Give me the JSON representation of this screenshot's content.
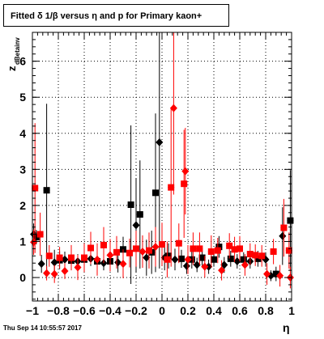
{
  "title": "Fitted δ 1/β versus η and p for Primary kaon+",
  "ylabel_main": "z",
  "ylabel_sub": "dBetainv",
  "xlabel": "η",
  "timestamp": "Thu Sep 14 10:55:57 2017",
  "colors": {
    "series_black": "#000000",
    "series_red": "#ff0000",
    "grid": "#000000",
    "frame": "#000000",
    "background": "#ffffff"
  },
  "chart_data": {
    "type": "scatter",
    "title": "Fitted δ 1/β versus η and p for Primary kaon+",
    "xlabel": "η",
    "ylabel": "z dBetainv",
    "xlim": [
      -1,
      1
    ],
    "ylim": [
      -0.65,
      6.8
    ],
    "xticks": [
      -1,
      -0.8,
      -0.6,
      -0.4,
      -0.2,
      0,
      0.2,
      0.4,
      0.6,
      0.8,
      1
    ],
    "xtick_labels": [
      "−1",
      "−0.8",
      "−0.6",
      "−0.4",
      "−0.2",
      "0",
      "0.2",
      "0.4",
      "0.6",
      "0.8",
      "1"
    ],
    "yticks": [
      0,
      1,
      2,
      3,
      4,
      5,
      6
    ],
    "ytick_labels": [
      "0",
      "1",
      "2",
      "3",
      "4",
      "5",
      "6"
    ],
    "grid": true,
    "series": [
      {
        "color": "#000000",
        "points": [
          {
            "x": -0.99,
            "y": 1.2,
            "err": 0.3,
            "marker": "diamond"
          },
          {
            "x": -0.97,
            "y": 1.12,
            "err": 0.2,
            "marker": "square"
          },
          {
            "x": -0.93,
            "y": 0.38,
            "err": 0.25,
            "marker": "diamond"
          },
          {
            "x": -0.89,
            "y": 2.42,
            "err": 2.4,
            "marker": "square"
          },
          {
            "x": -0.83,
            "y": 0.42,
            "err": 0.35,
            "marker": "diamond"
          },
          {
            "x": -0.79,
            "y": 0.48,
            "err": 0.25,
            "marker": "square"
          },
          {
            "x": -0.75,
            "y": 0.5,
            "err": 0.22,
            "marker": "diamond"
          },
          {
            "x": -0.7,
            "y": 0.47,
            "err": 0.25,
            "marker": "square"
          },
          {
            "x": -0.65,
            "y": 0.45,
            "err": 0.2,
            "marker": "diamond"
          },
          {
            "x": -0.6,
            "y": 0.5,
            "err": 0.25,
            "marker": "square"
          },
          {
            "x": -0.55,
            "y": 0.52,
            "err": 0.2,
            "marker": "diamond"
          },
          {
            "x": -0.5,
            "y": 0.45,
            "err": 0.22,
            "marker": "square"
          },
          {
            "x": -0.45,
            "y": 0.4,
            "err": 0.2,
            "marker": "diamond"
          },
          {
            "x": -0.4,
            "y": 0.45,
            "err": 0.22,
            "marker": "square"
          },
          {
            "x": -0.34,
            "y": 0.42,
            "err": 0.28,
            "marker": "diamond"
          },
          {
            "x": -0.3,
            "y": 0.78,
            "err": 0.35,
            "marker": "square"
          },
          {
            "x": -0.24,
            "y": 2.02,
            "err": 2.2,
            "marker": "square"
          },
          {
            "x": -0.2,
            "y": 1.45,
            "err": 1.3,
            "marker": "diamond"
          },
          {
            "x": -0.17,
            "y": 1.75,
            "err": 1.5,
            "marker": "square"
          },
          {
            "x": -0.12,
            "y": 0.55,
            "err": 0.5,
            "marker": "diamond"
          },
          {
            "x": -0.08,
            "y": 0.7,
            "err": 0.6,
            "marker": "square"
          },
          {
            "x": -0.02,
            "y": 3.75,
            "err": 3.5,
            "marker": "diamond"
          },
          {
            "x": -0.05,
            "y": 2.35,
            "err": 2.2,
            "marker": "square"
          },
          {
            "x": 0.02,
            "y": 0.55,
            "err": 0.35,
            "marker": "diamond"
          },
          {
            "x": 0.05,
            "y": 0.6,
            "err": 0.35,
            "marker": "square"
          },
          {
            "x": 0.1,
            "y": 0.5,
            "err": 0.3,
            "marker": "diamond"
          },
          {
            "x": 0.15,
            "y": 0.52,
            "err": 0.25,
            "marker": "square"
          },
          {
            "x": 0.19,
            "y": 0.32,
            "err": 0.22,
            "marker": "diamond"
          },
          {
            "x": 0.23,
            "y": 0.5,
            "err": 0.25,
            "marker": "square"
          },
          {
            "x": 0.27,
            "y": 0.35,
            "err": 0.2,
            "marker": "diamond"
          },
          {
            "x": 0.31,
            "y": 0.55,
            "err": 0.22,
            "marker": "square"
          },
          {
            "x": 0.36,
            "y": 0.3,
            "err": 0.2,
            "marker": "diamond"
          },
          {
            "x": 0.4,
            "y": 0.5,
            "err": 0.2,
            "marker": "square"
          },
          {
            "x": 0.44,
            "y": 0.85,
            "err": 0.3,
            "marker": "square"
          },
          {
            "x": 0.48,
            "y": 0.35,
            "err": 0.22,
            "marker": "diamond"
          },
          {
            "x": 0.53,
            "y": 0.52,
            "err": 0.22,
            "marker": "square"
          },
          {
            "x": 0.58,
            "y": 0.45,
            "err": 0.2,
            "marker": "diamond"
          },
          {
            "x": 0.63,
            "y": 0.5,
            "err": 0.2,
            "marker": "square"
          },
          {
            "x": 0.68,
            "y": 0.45,
            "err": 0.2,
            "marker": "diamond"
          },
          {
            "x": 0.74,
            "y": 0.52,
            "err": 0.22,
            "marker": "square"
          },
          {
            "x": 0.8,
            "y": 0.5,
            "err": 0.2,
            "marker": "diamond"
          },
          {
            "x": 0.84,
            "y": 0.05,
            "err": 0.15,
            "marker": "diamond"
          },
          {
            "x": 0.88,
            "y": 0.1,
            "err": 0.2,
            "marker": "square"
          },
          {
            "x": 0.93,
            "y": 1.15,
            "err": 0.8,
            "marker": "diamond"
          },
          {
            "x": 0.99,
            "y": 1.58,
            "err": 1.4,
            "marker": "square"
          }
        ]
      },
      {
        "color": "#ff0000",
        "points": [
          {
            "x": -0.99,
            "y": 0.98,
            "err": 0.35,
            "marker": "diamond"
          },
          {
            "x": -0.98,
            "y": 2.48,
            "err": 1.8,
            "marker": "square"
          },
          {
            "x": -0.94,
            "y": 1.2,
            "err": 0.6,
            "marker": "square"
          },
          {
            "x": -0.89,
            "y": 0.12,
            "err": 0.2,
            "marker": "diamond"
          },
          {
            "x": -0.87,
            "y": 0.6,
            "err": 0.3,
            "marker": "square"
          },
          {
            "x": -0.83,
            "y": 0.1,
            "err": 0.25,
            "marker": "diamond"
          },
          {
            "x": -0.79,
            "y": 0.55,
            "err": 0.3,
            "marker": "square"
          },
          {
            "x": -0.75,
            "y": 0.18,
            "err": 0.22,
            "marker": "diamond"
          },
          {
            "x": -0.7,
            "y": 0.55,
            "err": 0.35,
            "marker": "square"
          },
          {
            "x": -0.65,
            "y": 0.28,
            "err": 0.35,
            "marker": "diamond"
          },
          {
            "x": -0.6,
            "y": 0.55,
            "err": 0.4,
            "marker": "square"
          },
          {
            "x": -0.55,
            "y": 0.82,
            "err": 0.45,
            "marker": "square"
          },
          {
            "x": -0.5,
            "y": 0.5,
            "err": 0.45,
            "marker": "diamond"
          },
          {
            "x": -0.45,
            "y": 0.9,
            "err": 0.5,
            "marker": "square"
          },
          {
            "x": -0.4,
            "y": 0.62,
            "err": 0.45,
            "marker": "diamond"
          },
          {
            "x": -0.35,
            "y": 0.7,
            "err": 0.45,
            "marker": "square"
          },
          {
            "x": -0.3,
            "y": 0.38,
            "err": 0.4,
            "marker": "diamond"
          },
          {
            "x": -0.25,
            "y": 0.68,
            "err": 0.4,
            "marker": "square"
          },
          {
            "x": -0.2,
            "y": 0.8,
            "err": 0.5,
            "marker": "square"
          },
          {
            "x": -0.15,
            "y": 0.72,
            "err": 0.45,
            "marker": "diamond"
          },
          {
            "x": -0.1,
            "y": 0.75,
            "err": 0.5,
            "marker": "square"
          },
          {
            "x": -0.05,
            "y": 0.85,
            "err": 0.55,
            "marker": "diamond"
          },
          {
            "x": 0.0,
            "y": 0.92,
            "err": 0.6,
            "marker": "square"
          },
          {
            "x": 0.04,
            "y": 0.5,
            "err": 0.5,
            "marker": "square"
          },
          {
            "x": 0.07,
            "y": 2.5,
            "err": 2.2,
            "marker": "square"
          },
          {
            "x": 0.09,
            "y": 4.7,
            "err": 2.4,
            "marker": "diamond"
          },
          {
            "x": 0.13,
            "y": 0.95,
            "err": 0.55,
            "marker": "square"
          },
          {
            "x": 0.17,
            "y": 2.6,
            "err": 1.5,
            "marker": "square"
          },
          {
            "x": 0.18,
            "y": 2.95,
            "err": 1.2,
            "marker": "diamond"
          },
          {
            "x": 0.2,
            "y": 0.5,
            "err": 0.4,
            "marker": "diamond"
          },
          {
            "x": 0.24,
            "y": 0.8,
            "err": 0.45,
            "marker": "square"
          },
          {
            "x": 0.29,
            "y": 0.8,
            "err": 0.45,
            "marker": "square"
          },
          {
            "x": 0.33,
            "y": 0.3,
            "err": 0.3,
            "marker": "diamond"
          },
          {
            "x": 0.38,
            "y": 0.72,
            "err": 0.45,
            "marker": "square"
          },
          {
            "x": 0.43,
            "y": 0.75,
            "err": 0.35,
            "marker": "square"
          },
          {
            "x": 0.46,
            "y": 0.2,
            "err": 0.28,
            "marker": "diamond"
          },
          {
            "x": 0.52,
            "y": 0.88,
            "err": 0.35,
            "marker": "square"
          },
          {
            "x": 0.56,
            "y": 0.78,
            "err": 0.35,
            "marker": "square"
          },
          {
            "x": 0.6,
            "y": 0.8,
            "err": 0.35,
            "marker": "square"
          },
          {
            "x": 0.64,
            "y": 0.35,
            "err": 0.3,
            "marker": "diamond"
          },
          {
            "x": 0.68,
            "y": 0.65,
            "err": 0.3,
            "marker": "square"
          },
          {
            "x": 0.72,
            "y": 0.62,
            "err": 0.3,
            "marker": "square"
          },
          {
            "x": 0.77,
            "y": 0.6,
            "err": 0.3,
            "marker": "square"
          },
          {
            "x": 0.81,
            "y": 0.1,
            "err": 0.3,
            "marker": "diamond"
          },
          {
            "x": 0.86,
            "y": 0.72,
            "err": 0.35,
            "marker": "square"
          },
          {
            "x": 0.91,
            "y": 0.05,
            "err": 0.3,
            "marker": "diamond"
          },
          {
            "x": 0.94,
            "y": 1.38,
            "err": 0.8,
            "marker": "square"
          },
          {
            "x": 0.98,
            "y": 0.75,
            "err": 0.5,
            "marker": "square"
          },
          {
            "x": 0.99,
            "y": 0.0,
            "err": 0.3,
            "marker": "diamond"
          }
        ]
      }
    ]
  }
}
